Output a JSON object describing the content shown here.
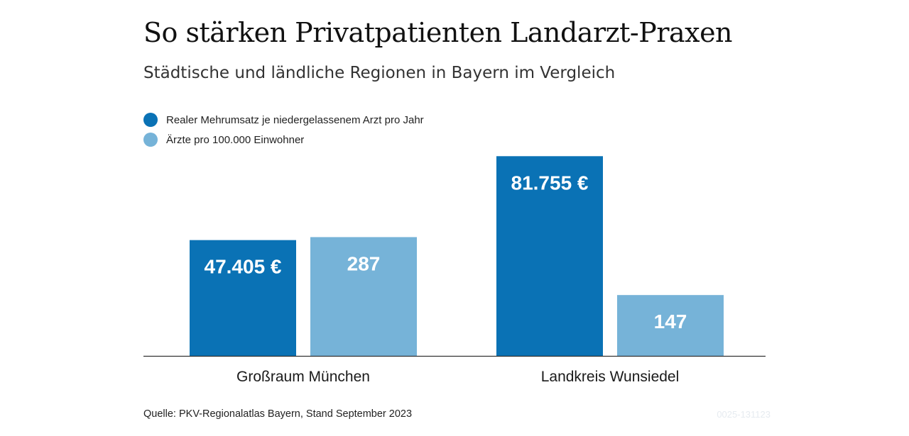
{
  "chart_data": {
    "type": "bar",
    "title": "So stärken Privatpatienten Landarzt-Praxen",
    "subtitle": "Städtische und ländliche Regionen in Bayern im Vergleich",
    "categories": [
      "Großraum München",
      "Landkreis Wunsiedel"
    ],
    "series": [
      {
        "name": "Realer Mehrumsatz je niedergelassenem Arzt pro Jahr",
        "values": [
          47405,
          81755
        ],
        "labels": [
          "47.405 €",
          "81.755 €"
        ],
        "color": "#0a72b5",
        "scale_max": 92000
      },
      {
        "name": "Ärzte pro 100.000 Einwohner",
        "values": [
          287,
          147
        ],
        "labels": [
          "287",
          "147"
        ],
        "color": "#76b3d8",
        "scale_max": 543
      }
    ],
    "grid": false,
    "legend_position": "top-left"
  },
  "footer": {
    "source": "Quelle: PKV-Regionalatlas Bayern, Stand September 2023",
    "code": "0025-131123"
  }
}
